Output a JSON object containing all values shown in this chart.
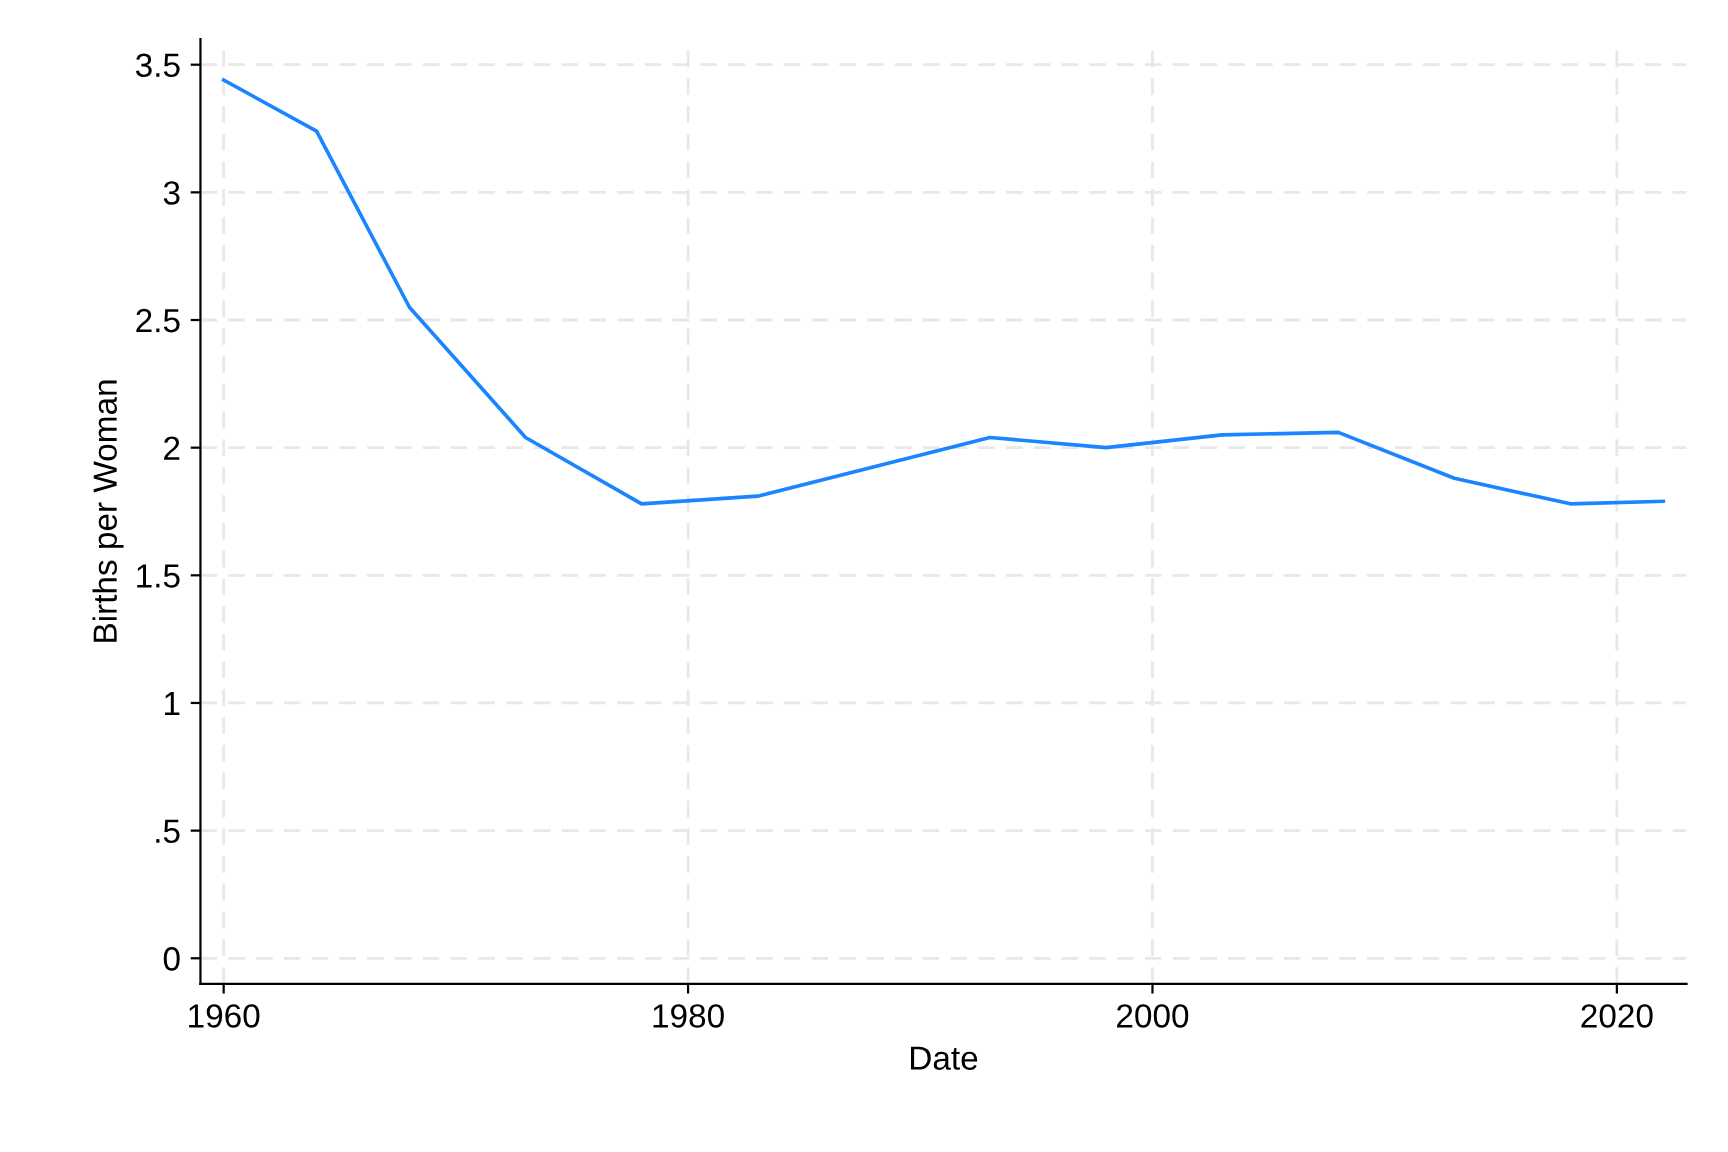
{
  "chart_data": {
    "type": "line",
    "xlabel": "Date",
    "ylabel": "Births per Woman",
    "x": [
      1960,
      1964,
      1968,
      1973,
      1978,
      1983,
      1993,
      1998,
      2003,
      2008,
      2013,
      2018,
      2022
    ],
    "series": [
      {
        "color": "#1a85ff",
        "values": [
          3.44,
          3.24,
          2.55,
          2.04,
          1.78,
          1.81,
          2.04,
          2.0,
          2.05,
          2.06,
          1.88,
          1.78,
          1.79
        ]
      }
    ],
    "xlim": [
      1959,
      2023
    ],
    "xticks": [
      1960,
      1980,
      2000,
      2020
    ],
    "ylim": [
      -0.1,
      3.6
    ],
    "yticks": [
      0,
      {
        "value": 0.5,
        "label": ".5"
      },
      1,
      1.5,
      2,
      2.5,
      3,
      3.5
    ],
    "grid": true,
    "line_style": "solid",
    "marker": "none",
    "legend": false
  }
}
